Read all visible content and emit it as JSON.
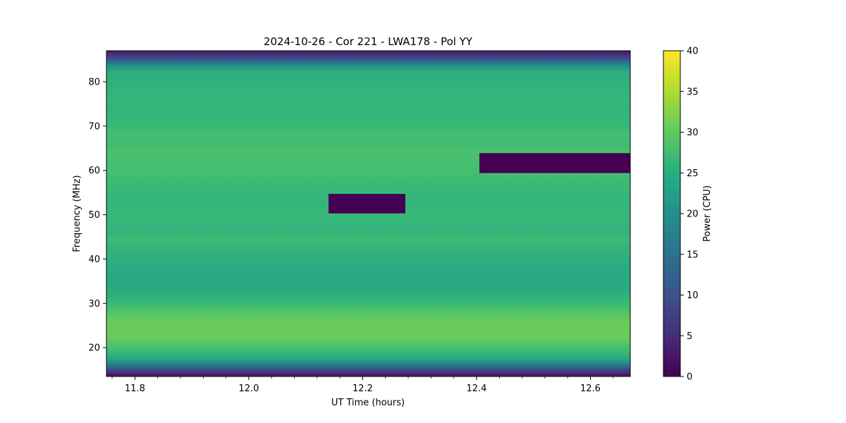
{
  "chart_data": {
    "type": "heatmap",
    "title": "2024-10-26 - Cor 221 - LWA178 - Pol YY",
    "xlabel": "UT Time (hours)",
    "ylabel": "Frequency (MHz)",
    "xlim": [
      11.75,
      12.67
    ],
    "ylim": [
      13.5,
      87
    ],
    "xticks": [
      11.8,
      12.0,
      12.2,
      12.4,
      12.6
    ],
    "xtick_labels": [
      "11.8",
      "12.0",
      "12.2",
      "12.4",
      "12.6"
    ],
    "yticks": [
      20,
      30,
      40,
      50,
      60,
      70,
      80
    ],
    "ytick_labels": [
      "20",
      "30",
      "40",
      "50",
      "60",
      "70",
      "80"
    ],
    "colorbar": {
      "label": "Power (CPU)",
      "colormap": "viridis",
      "range": [
        0,
        40
      ],
      "ticks": [
        0,
        5,
        10,
        15,
        20,
        25,
        30,
        35,
        40
      ],
      "tick_labels": [
        "0",
        "5",
        "10",
        "15",
        "20",
        "25",
        "30",
        "35",
        "40"
      ]
    },
    "frequency_profile": {
      "frequency_mhz": [
        13.5,
        14.5,
        15.5,
        16.5,
        17.5,
        18.5,
        20,
        22,
        24,
        26,
        28,
        30,
        32,
        34,
        36,
        38,
        40,
        42,
        44.5,
        46,
        48,
        50,
        52,
        54,
        56,
        58,
        60,
        62,
        64,
        66,
        68,
        70,
        72,
        74,
        76,
        78,
        80,
        82,
        83.5,
        84.5,
        85.5,
        87
      ],
      "power_cpu": [
        2,
        6,
        12,
        19,
        24,
        26,
        28,
        30.5,
        31,
        30.5,
        29,
        27,
        25,
        24,
        24,
        24.5,
        25,
        26,
        27.5,
        26,
        26.5,
        27,
        26.5,
        26.5,
        27,
        27.5,
        28,
        28,
        28.5,
        27.5,
        28,
        27,
        26.5,
        26,
        26.5,
        26,
        25.5,
        25,
        21,
        14,
        8,
        3
      ]
    },
    "flagged_regions": [
      {
        "time_start": 12.14,
        "time_end": 12.275,
        "freq_start": 50.3,
        "freq_end": 54.7,
        "power_cpu": 0
      },
      {
        "time_start": 12.405,
        "time_end": 12.67,
        "freq_start": 59.4,
        "freq_end": 63.9,
        "power_cpu": 0
      }
    ]
  }
}
